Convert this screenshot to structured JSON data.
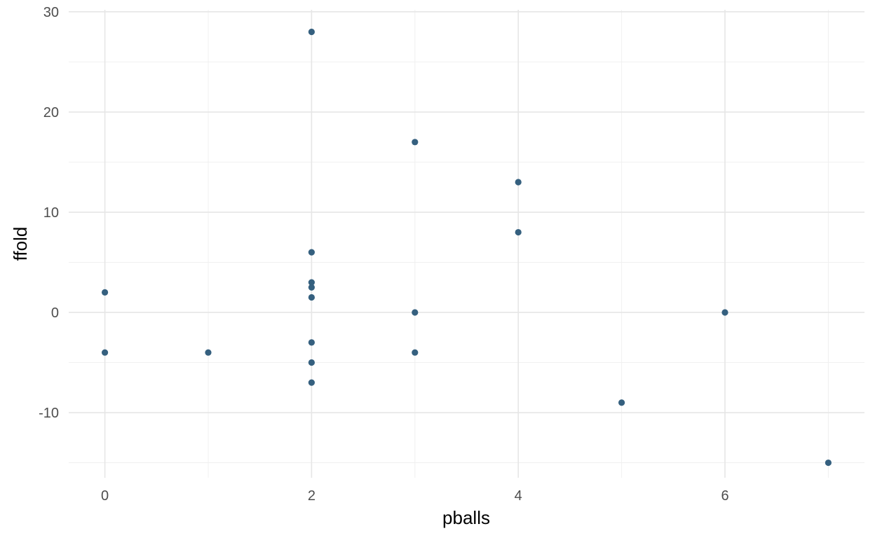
{
  "chart_data": {
    "type": "scatter",
    "xlabel": "pballs",
    "ylabel": "ffold",
    "xlim": [
      -0.35,
      7.35
    ],
    "ylim": [
      -16.5,
      30.2
    ],
    "x_ticks": [
      0,
      2,
      4,
      6
    ],
    "x_tick_labels": [
      "0",
      "2",
      "4",
      "6"
    ],
    "x_minor_ticks": [
      1,
      3,
      5,
      7
    ],
    "y_ticks": [
      -10,
      0,
      10,
      20,
      30
    ],
    "y_tick_labels": [
      "-10",
      "0",
      "10",
      "20",
      "30"
    ],
    "y_minor_ticks": [
      -15,
      -5,
      5,
      15,
      25
    ],
    "grid": true,
    "legend": "none",
    "point_color": "#35607f",
    "points": [
      {
        "x": 0,
        "y": 2
      },
      {
        "x": 0,
        "y": -4
      },
      {
        "x": 1,
        "y": -4
      },
      {
        "x": 2,
        "y": 28
      },
      {
        "x": 2,
        "y": 6
      },
      {
        "x": 2,
        "y": 3
      },
      {
        "x": 2,
        "y": 2.5
      },
      {
        "x": 2,
        "y": 1.5
      },
      {
        "x": 2,
        "y": -3
      },
      {
        "x": 2,
        "y": -5
      },
      {
        "x": 2,
        "y": -7
      },
      {
        "x": 3,
        "y": 17
      },
      {
        "x": 3,
        "y": 0
      },
      {
        "x": 3,
        "y": -4
      },
      {
        "x": 4,
        "y": 13
      },
      {
        "x": 4,
        "y": 8
      },
      {
        "x": 5,
        "y": -9
      },
      {
        "x": 6,
        "y": 0
      },
      {
        "x": 7,
        "y": -15
      }
    ]
  }
}
